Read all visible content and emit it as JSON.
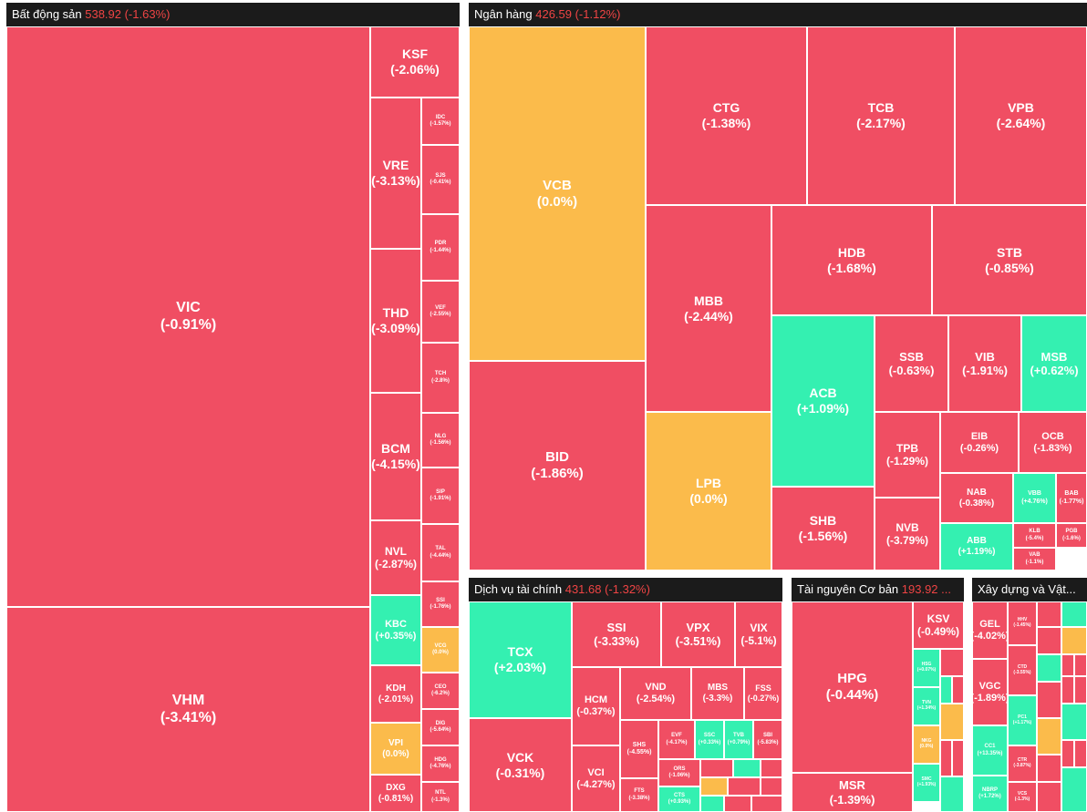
{
  "colors": {
    "down": "#f04e63",
    "up": "#34f0b1",
    "flat": "#fbbb4b",
    "header_bg": "#1b1b1b",
    "header_value": "#ef4444"
  },
  "sectors": [
    {
      "name": "Bất động sản",
      "value": "538.92 (-1.63%)",
      "tiles": [
        {
          "s": "VIC",
          "c": "(-0.91%)"
        },
        {
          "s": "VHM",
          "c": "(-3.41%)"
        },
        {
          "s": "KSF",
          "c": "(-2.06%)"
        },
        {
          "s": "VRE",
          "c": "(-3.13%)"
        },
        {
          "s": "THD",
          "c": "(-3.09%)"
        },
        {
          "s": "BCM",
          "c": "(-4.15%)"
        },
        {
          "s": "NVL",
          "c": "(-2.87%)"
        },
        {
          "s": "KBC",
          "c": "(+0.35%)"
        },
        {
          "s": "KDH",
          "c": "(-2.01%)"
        },
        {
          "s": "VPI",
          "c": "(0.0%)"
        },
        {
          "s": "DXG",
          "c": "(-0.81%)"
        },
        {
          "s": "IDC",
          "c": "(-1.57%)"
        },
        {
          "s": "SJS",
          "c": "(-0.41%)"
        },
        {
          "s": "PDR",
          "c": "(-1.44%)"
        },
        {
          "s": "VEF",
          "c": "(-2.55%)"
        },
        {
          "s": "TCH",
          "c": "(-2.8%)"
        },
        {
          "s": "NLG",
          "c": "(-1.56%)"
        },
        {
          "s": "SIP",
          "c": "(-1.91%)"
        },
        {
          "s": "TAL",
          "c": "(-4.44%)"
        },
        {
          "s": "SSI",
          "c": "(-1.76%)"
        },
        {
          "s": "VCG",
          "c": "(0.0%)"
        },
        {
          "s": "CEO",
          "c": "(-6.2%)"
        },
        {
          "s": "DIG",
          "c": "(-5.64%)"
        },
        {
          "s": "HDG",
          "c": "(-4.76%)"
        },
        {
          "s": "NTL",
          "c": "(-1.3%)"
        }
      ]
    },
    {
      "name": "Ngân hàng",
      "value": "426.59 (-1.12%)",
      "tiles": [
        {
          "s": "VCB",
          "c": "(0.0%)"
        },
        {
          "s": "BID",
          "c": "(-1.86%)"
        },
        {
          "s": "CTG",
          "c": "(-1.38%)"
        },
        {
          "s": "TCB",
          "c": "(-2.17%)"
        },
        {
          "s": "VPB",
          "c": "(-2.64%)"
        },
        {
          "s": "MBB",
          "c": "(-2.44%)"
        },
        {
          "s": "HDB",
          "c": "(-1.68%)"
        },
        {
          "s": "STB",
          "c": "(-0.85%)"
        },
        {
          "s": "LPB",
          "c": "(0.0%)"
        },
        {
          "s": "ACB",
          "c": "(+1.09%)"
        },
        {
          "s": "SSB",
          "c": "(-0.63%)"
        },
        {
          "s": "VIB",
          "c": "(-1.91%)"
        },
        {
          "s": "MSB",
          "c": "(+0.62%)"
        },
        {
          "s": "TPB",
          "c": "(-1.29%)"
        },
        {
          "s": "EIB",
          "c": "(-0.26%)"
        },
        {
          "s": "OCB",
          "c": "(-1.83%)"
        },
        {
          "s": "SHB",
          "c": "(-1.56%)"
        },
        {
          "s": "NVB",
          "c": "(-3.79%)"
        },
        {
          "s": "NAB",
          "c": "(-0.38%)"
        },
        {
          "s": "VBB",
          "c": "(+4.76%)"
        },
        {
          "s": "BAB",
          "c": "(-1.77%)"
        },
        {
          "s": "ABB",
          "c": "(+1.19%)"
        },
        {
          "s": "KLB",
          "c": "(-5.4%)"
        },
        {
          "s": "PGB",
          "c": "(-1.6%)"
        },
        {
          "s": "VAB",
          "c": "(-1.1%)"
        }
      ]
    },
    {
      "name": "Dịch vụ tài chính",
      "value": "431.68 (-1.32%)",
      "tiles": [
        {
          "s": "TCX",
          "c": "(+2.03%)"
        },
        {
          "s": "VCK",
          "c": "(-0.31%)"
        },
        {
          "s": "SSI",
          "c": "(-3.33%)"
        },
        {
          "s": "VPX",
          "c": "(-3.51%)"
        },
        {
          "s": "VIX",
          "c": "(-5.1%)"
        },
        {
          "s": "HCM",
          "c": "(-0.37%)"
        },
        {
          "s": "VND",
          "c": "(-2.54%)"
        },
        {
          "s": "MBS",
          "c": "(-3.3%)"
        },
        {
          "s": "FSS",
          "c": "(-0.27%)"
        },
        {
          "s": "VCI",
          "c": "(-4.27%)"
        },
        {
          "s": "SHS",
          "c": "(-4.55%)"
        },
        {
          "s": "EVF",
          "c": "(-4.17%)"
        },
        {
          "s": "SSC",
          "c": "(+0.33%)"
        },
        {
          "s": "TVB",
          "c": "(+0.79%)"
        },
        {
          "s": "SBI",
          "c": "(-5.83%)"
        },
        {
          "s": "ORS",
          "c": "(-1.06%)"
        },
        {
          "s": "FTS",
          "c": "(-3.38%)"
        },
        {
          "s": "CTS",
          "c": "(+0.93%)"
        }
      ]
    },
    {
      "name": "Tài nguyên Cơ bản",
      "value": "193.92 ...",
      "tiles": [
        {
          "s": "HPG",
          "c": "(-0.44%)"
        },
        {
          "s": "MSR",
          "c": "(-1.39%)"
        },
        {
          "s": "KSV",
          "c": "(-0.49%)"
        },
        {
          "s": "HSG",
          "c": "(+0.07%)"
        },
        {
          "s": "TVN",
          "c": "(+1.34%)"
        },
        {
          "s": "NKG",
          "c": "(0.0%)"
        },
        {
          "s": "SMC",
          "c": "(+1.93%)"
        }
      ]
    },
    {
      "name": "Xây dựng và Vật...",
      "value": "",
      "tiles": [
        {
          "s": "GEL",
          "c": "(-4.02%)"
        },
        {
          "s": "VGC",
          "c": "(-1.89%)"
        },
        {
          "s": "CC1",
          "c": "(+13.35%)"
        },
        {
          "s": "NBRP",
          "c": "(+1.72%)"
        },
        {
          "s": "HHV",
          "c": "(-1.45%)"
        },
        {
          "s": "CTD",
          "c": "(-3.55%)"
        },
        {
          "s": "PC1",
          "c": "(+1.17%)"
        },
        {
          "s": "CTR",
          "c": "(-3.87%)"
        },
        {
          "s": "VCS",
          "c": "(-1.3%)"
        }
      ]
    }
  ]
}
